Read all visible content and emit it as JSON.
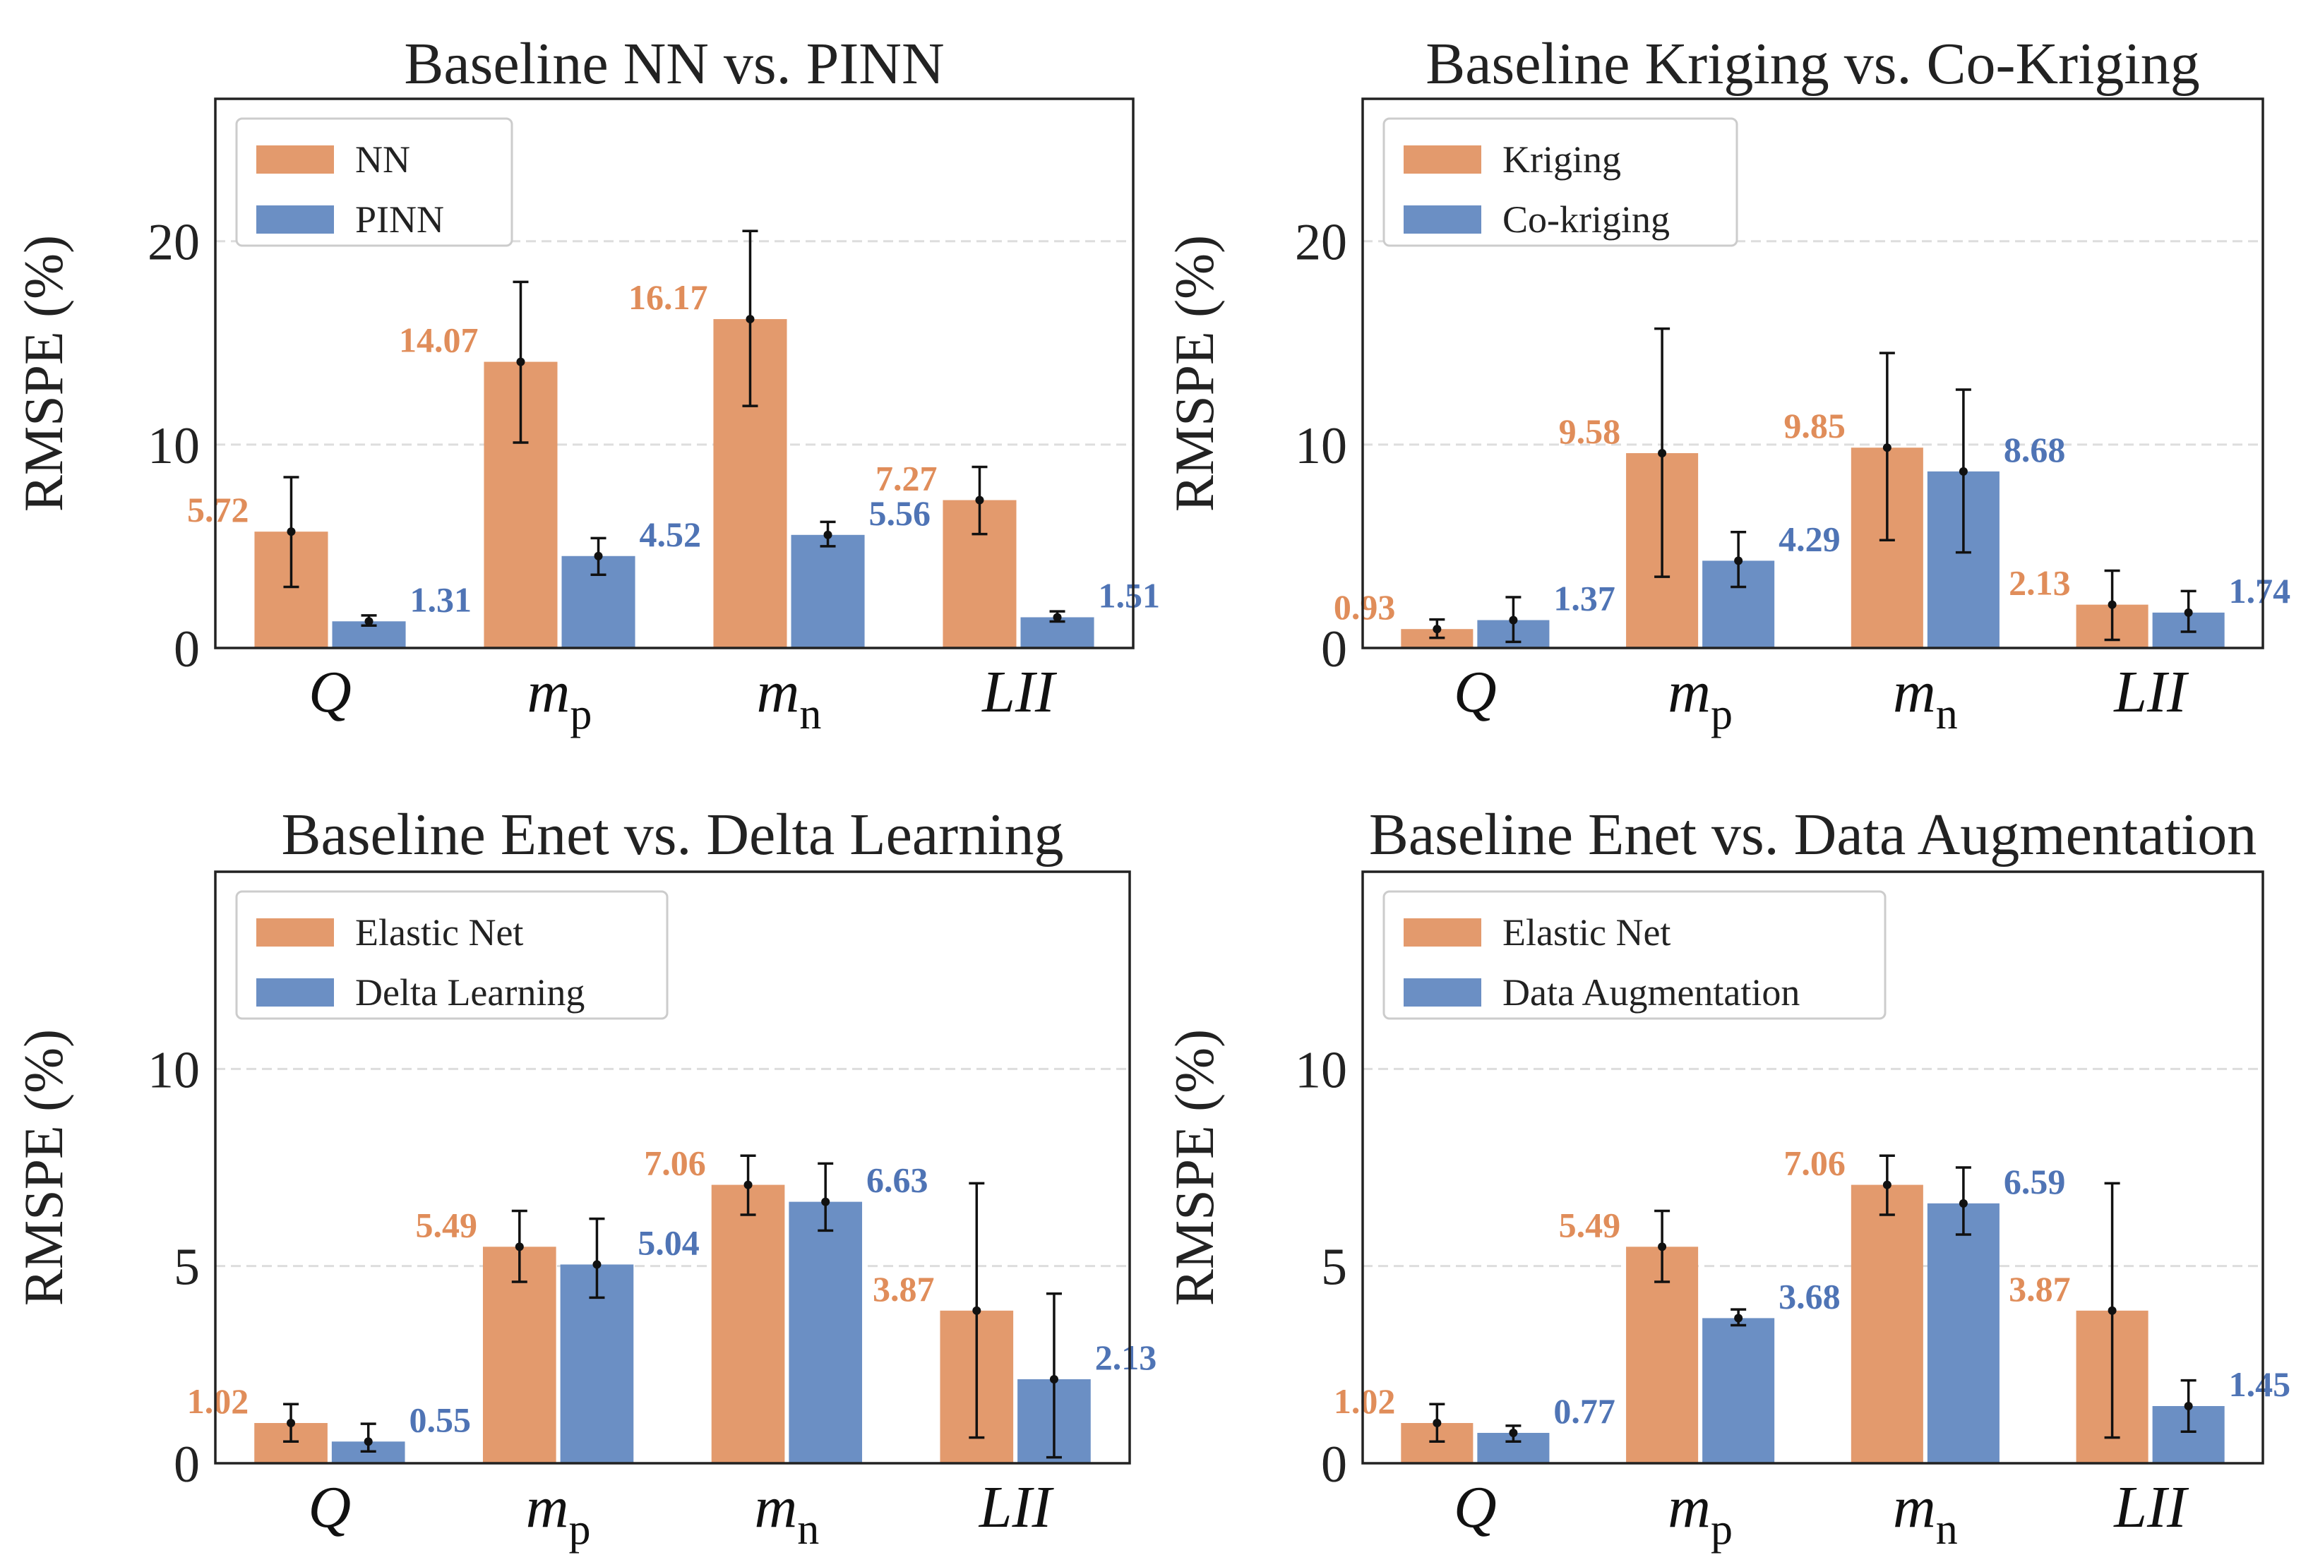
{
  "colors": {
    "orange": "#E39A6D",
    "blue": "#6B8FC4",
    "orange_text": "#E08D5A",
    "blue_text": "#4F74B5"
  },
  "ylabel": "RMSPE (%)",
  "chart_data": [
    {
      "type": "bar",
      "title": "Baseline NN vs. PINN",
      "ylabel": "RMSPE (%)",
      "ylim": [
        0,
        27
      ],
      "yticks": [
        0,
        10,
        20
      ],
      "grid": true,
      "legend": "top-left",
      "categories": [
        {
          "main": "Q",
          "sub": ""
        },
        {
          "main": "m",
          "sub": "p"
        },
        {
          "main": "m",
          "sub": "n"
        },
        {
          "main": "LII",
          "sub": ""
        }
      ],
      "series": [
        {
          "name": "NN",
          "values": [
            5.72,
            14.07,
            16.17,
            7.27
          ],
          "labels": [
            "5.72",
            "14.07",
            "16.17",
            "7.27"
          ],
          "err_low": [
            3.0,
            10.1,
            11.9,
            5.6
          ],
          "err_high": [
            8.4,
            18.0,
            20.5,
            8.9
          ]
        },
        {
          "name": "PINN",
          "values": [
            1.31,
            4.52,
            5.56,
            1.51
          ],
          "labels": [
            "1.31",
            "4.52",
            "5.56",
            "1.51"
          ],
          "err_low": [
            1.1,
            3.6,
            5.0,
            1.3
          ],
          "err_high": [
            1.6,
            5.4,
            6.2,
            1.8
          ]
        }
      ]
    },
    {
      "type": "bar",
      "title": "Baseline Kriging vs. Co-Kriging",
      "ylabel": "RMSPE (%)",
      "ylim": [
        0,
        27
      ],
      "yticks": [
        0,
        10,
        20
      ],
      "grid": true,
      "legend": "top-left",
      "categories": [
        {
          "main": "Q",
          "sub": ""
        },
        {
          "main": "m",
          "sub": "p"
        },
        {
          "main": "m",
          "sub": "n"
        },
        {
          "main": "LII",
          "sub": ""
        }
      ],
      "series": [
        {
          "name": "Kriging",
          "values": [
            0.93,
            9.58,
            9.85,
            2.13
          ],
          "labels": [
            "0.93",
            "9.58",
            "9.85",
            "2.13"
          ],
          "err_low": [
            0.5,
            3.5,
            5.3,
            0.4
          ],
          "err_high": [
            1.4,
            15.7,
            14.5,
            3.8
          ]
        },
        {
          "name": "Co-kriging",
          "values": [
            1.37,
            4.29,
            8.68,
            1.74
          ],
          "labels": [
            "1.37",
            "4.29",
            "8.68",
            "1.74"
          ],
          "err_low": [
            0.3,
            3.0,
            4.7,
            0.8
          ],
          "err_high": [
            2.5,
            5.7,
            12.7,
            2.8
          ]
        }
      ]
    },
    {
      "type": "bar",
      "title": "Baseline Enet vs. Delta Learning",
      "ylabel": "RMSPE (%)",
      "ylim": [
        0,
        15
      ],
      "yticks": [
        0,
        5,
        10
      ],
      "grid": true,
      "legend": "top-left",
      "categories": [
        {
          "main": "Q",
          "sub": ""
        },
        {
          "main": "m",
          "sub": "p"
        },
        {
          "main": "m",
          "sub": "n"
        },
        {
          "main": "LII",
          "sub": ""
        }
      ],
      "series": [
        {
          "name": "Elastic Net",
          "values": [
            1.02,
            5.49,
            7.06,
            3.87
          ],
          "labels": [
            "1.02",
            "5.49",
            "7.06",
            "3.87"
          ],
          "err_low": [
            0.55,
            4.6,
            6.3,
            0.65
          ],
          "err_high": [
            1.5,
            6.4,
            7.8,
            7.1
          ]
        },
        {
          "name": "Delta Learning",
          "values": [
            0.55,
            5.04,
            6.63,
            2.13
          ],
          "labels": [
            "0.55",
            "5.04",
            "6.63",
            "2.13"
          ],
          "err_low": [
            0.3,
            4.2,
            5.9,
            0.15
          ],
          "err_high": [
            1.0,
            6.2,
            7.6,
            4.3
          ]
        }
      ]
    },
    {
      "type": "bar",
      "title": "Baseline Enet vs. Data Augmentation",
      "ylabel": "RMSPE (%)",
      "ylim": [
        0,
        15
      ],
      "yticks": [
        0,
        5,
        10
      ],
      "grid": true,
      "legend": "top-left",
      "categories": [
        {
          "main": "Q",
          "sub": ""
        },
        {
          "main": "m",
          "sub": "p"
        },
        {
          "main": "m",
          "sub": "n"
        },
        {
          "main": "LII",
          "sub": ""
        }
      ],
      "series": [
        {
          "name": "Elastic Net",
          "values": [
            1.02,
            5.49,
            7.06,
            3.87
          ],
          "labels": [
            "1.02",
            "5.49",
            "7.06",
            "3.87"
          ],
          "err_low": [
            0.55,
            4.6,
            6.3,
            0.65
          ],
          "err_high": [
            1.5,
            6.4,
            7.8,
            7.1
          ]
        },
        {
          "name": "Data Augmentation",
          "values": [
            0.77,
            3.68,
            6.59,
            1.45
          ],
          "labels": [
            "0.77",
            "3.68",
            "6.59",
            "1.45"
          ],
          "err_low": [
            0.55,
            3.5,
            5.8,
            0.8
          ],
          "err_high": [
            0.95,
            3.9,
            7.5,
            2.1
          ]
        }
      ]
    }
  ]
}
